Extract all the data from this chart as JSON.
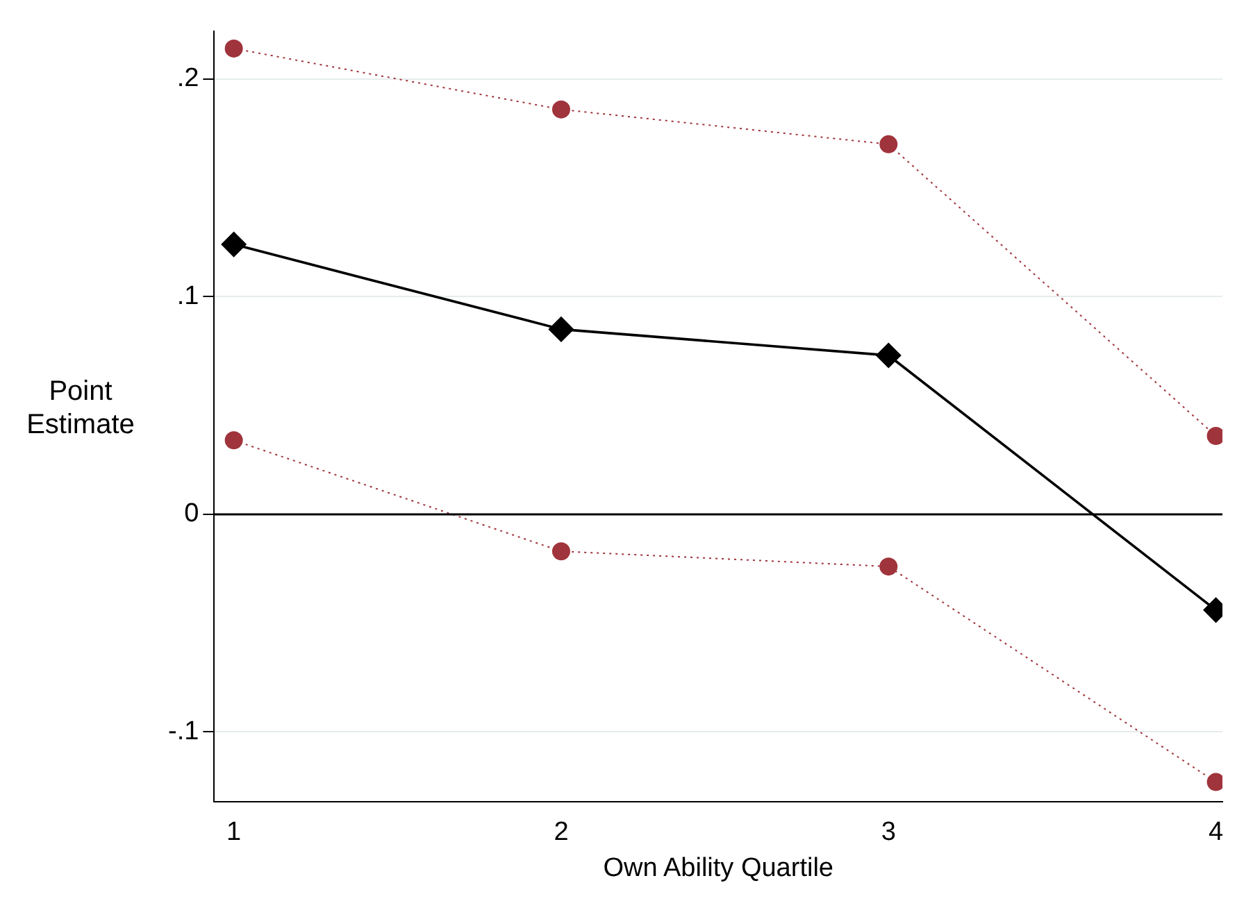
{
  "chart_data": {
    "type": "line",
    "xlabel": "Own Ability Quartile",
    "ylabel": "Point Estimate",
    "x": [
      1,
      2,
      3,
      4
    ],
    "series": [
      {
        "color": "#a0343c",
        "values": [
          0.214,
          0.186,
          0.17,
          0.036
        ],
        "marker": "circle",
        "line_style": "dotted"
      },
      {
        "color": "#000000",
        "values": [
          0.124,
          0.085,
          0.073,
          -0.044
        ],
        "marker": "diamond",
        "line_style": "solid"
      },
      {
        "color": "#a0343c",
        "values": [
          0.034,
          -0.017,
          -0.024,
          -0.123
        ],
        "marker": "circle",
        "line_style": "dotted"
      }
    ],
    "xlim": [
      0.94,
      4.02
    ],
    "xticks": [
      1,
      2,
      3,
      4
    ],
    "ylim": [
      -0.132,
      0.222
    ],
    "yticks": [
      {
        "value": -0.1,
        "label": "-.1"
      },
      {
        "value": 0,
        "label": "0"
      },
      {
        "value": 0.1,
        "label": ".1"
      },
      {
        "value": 0.2,
        "label": ".2"
      }
    ],
    "grid": "y",
    "legend": false,
    "ref_lines": [
      {
        "axis": "y",
        "value": 0,
        "color": "#000000",
        "line_style": "solid"
      }
    ]
  }
}
